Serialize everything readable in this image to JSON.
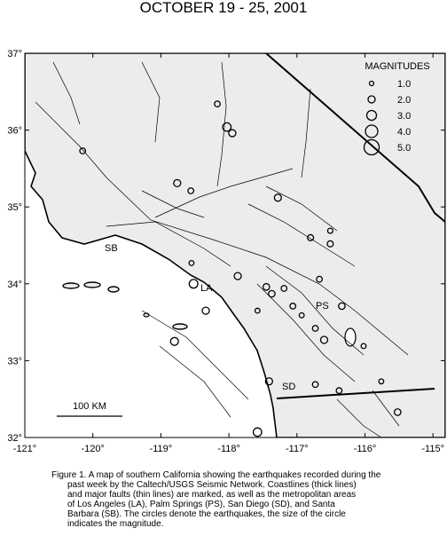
{
  "map": {
    "title": "OCTOBER 19 - 25, 2001",
    "xlim": [
      -121,
      -114.82
    ],
    "ylim": [
      32,
      37
    ],
    "xticks": [
      {
        "value": -121,
        "label": "-121°"
      },
      {
        "value": -120,
        "label": "-120°"
      },
      {
        "value": -119,
        "label": "-119°"
      },
      {
        "value": -118,
        "label": "-118°"
      },
      {
        "value": -117,
        "label": "-117°"
      },
      {
        "value": -116,
        "label": "-116°"
      },
      {
        "value": -115,
        "label": "-115°"
      }
    ],
    "yticks": [
      {
        "value": 32,
        "label": "32°"
      },
      {
        "value": 33,
        "label": "33°"
      },
      {
        "value": 34,
        "label": "34°"
      },
      {
        "value": 35,
        "label": "35°"
      },
      {
        "value": 36,
        "label": "36°"
      },
      {
        "value": 37,
        "label": "37°"
      }
    ],
    "legend": {
      "title": "MAGNITUDES",
      "items": [
        {
          "value": 1,
          "label": "1.0"
        },
        {
          "value": 2,
          "label": "2.0"
        },
        {
          "value": 3,
          "label": "3.0"
        },
        {
          "value": 4,
          "label": "4.0"
        },
        {
          "value": 5,
          "label": "5.0"
        }
      ]
    },
    "cities": [
      "SB",
      "LA",
      "PS",
      "SD"
    ],
    "scale_label": "100 KM",
    "earthquakes": {
      "lon": [
        -120.15,
        -118.17,
        -118.03,
        -117.95,
        -118.76,
        -117.28,
        -116.8,
        -116.51,
        -118.52,
        -118.34,
        -117.87,
        -117.45,
        -117.37,
        -117.19,
        -117.06,
        -116.93,
        -116.73,
        -116.6,
        -116.34,
        -118.8,
        -117.41,
        -116.73,
        -116.38,
        -115.52,
        -117.58,
        -116.67,
        -116.02,
        -115.76,
        -118.55,
        -118.56,
        -116.51,
        -117.58
      ],
      "lat": [
        35.73,
        36.34,
        36.04,
        35.96,
        35.31,
        35.12,
        34.6,
        34.52,
        34.0,
        33.65,
        34.1,
        33.96,
        33.87,
        33.94,
        33.71,
        33.59,
        33.42,
        33.27,
        33.71,
        33.25,
        32.73,
        32.69,
        32.61,
        32.33,
        32.07,
        34.06,
        33.19,
        32.73,
        34.27,
        35.21,
        34.69,
        33.65
      ],
      "magnitude": [
        1.5,
        1.5,
        2.5,
        2.0,
        2.0,
        2.0,
        1.6,
        1.6,
        2.6,
        2.0,
        2.0,
        1.8,
        1.8,
        1.5,
        1.5,
        1.2,
        1.5,
        2.0,
        1.8,
        2.3,
        2.0,
        1.5,
        1.5,
        1.8,
        2.5,
        1.5,
        1.2,
        1.2,
        1.2,
        1.5,
        1.3,
        1.2
      ]
    },
    "caption": [
      "Figure 1. A map of southern California showing the earthquakes recorded during the",
      "past week by the Caltech/USGS Seismic Network.  Coastlines (thick lines)",
      "and major faults (thin lines) are marked, as well as the metropolitan areas",
      "of Los Angeles (LA), Palm Springs (PS), San Diego (SD), and Santa",
      "Barbara (SB).  The circles denote the earthquakes, the size of the circle",
      "indicates the magnitude."
    ]
  }
}
